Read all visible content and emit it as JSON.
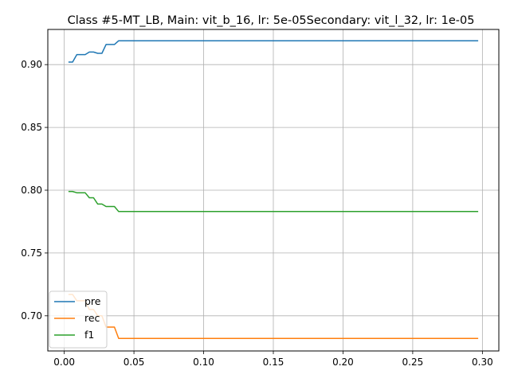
{
  "chart_data": {
    "type": "line",
    "title": "Class #5-MT_LB, Main: vit_b_16, lr: 5e-05Secondary: vit_l_32, lr: 1e-05",
    "xlabel": "",
    "ylabel": "",
    "xlim": [
      -0.0118,
      0.3118
    ],
    "ylim": [
      0.672,
      0.928
    ],
    "grid": true,
    "legend_position": "lower-left",
    "x_ticks": [
      0.0,
      0.05,
      0.1,
      0.15,
      0.2,
      0.25,
      0.3
    ],
    "x_tick_labels": [
      "0.00",
      "0.05",
      "0.10",
      "0.15",
      "0.20",
      "0.25",
      "0.30"
    ],
    "y_ticks": [
      0.7,
      0.75,
      0.8,
      0.85,
      0.9
    ],
    "y_tick_labels": [
      "0.70",
      "0.75",
      "0.80",
      "0.85",
      "0.90"
    ],
    "series": [
      {
        "name": "pre",
        "color": "#1f77b4",
        "points": [
          [
            0.003,
            0.902
          ],
          [
            0.006,
            0.902
          ],
          [
            0.009,
            0.908
          ],
          [
            0.015,
            0.908
          ],
          [
            0.018,
            0.91
          ],
          [
            0.021,
            0.91
          ],
          [
            0.024,
            0.909
          ],
          [
            0.027,
            0.909
          ],
          [
            0.03,
            0.916
          ],
          [
            0.036,
            0.916
          ],
          [
            0.039,
            0.919
          ],
          [
            0.297,
            0.919
          ]
        ]
      },
      {
        "name": "rec",
        "color": "#ff7f0e",
        "points": [
          [
            0.003,
            0.717
          ],
          [
            0.006,
            0.717
          ],
          [
            0.009,
            0.712
          ],
          [
            0.015,
            0.712
          ],
          [
            0.018,
            0.705
          ],
          [
            0.021,
            0.705
          ],
          [
            0.024,
            0.7
          ],
          [
            0.027,
            0.7
          ],
          [
            0.03,
            0.691
          ],
          [
            0.036,
            0.691
          ],
          [
            0.039,
            0.682
          ],
          [
            0.297,
            0.682
          ]
        ]
      },
      {
        "name": "f1",
        "color": "#2ca02c",
        "points": [
          [
            0.003,
            0.799
          ],
          [
            0.006,
            0.799
          ],
          [
            0.009,
            0.798
          ],
          [
            0.015,
            0.798
          ],
          [
            0.018,
            0.794
          ],
          [
            0.021,
            0.794
          ],
          [
            0.024,
            0.789
          ],
          [
            0.027,
            0.789
          ],
          [
            0.03,
            0.787
          ],
          [
            0.036,
            0.787
          ],
          [
            0.039,
            0.783
          ],
          [
            0.297,
            0.783
          ]
        ]
      }
    ]
  }
}
